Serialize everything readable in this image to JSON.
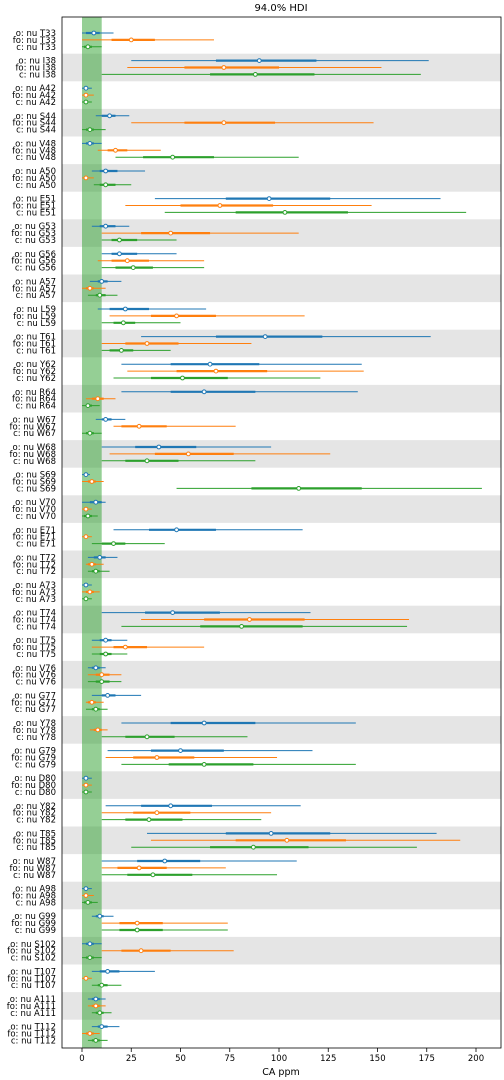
{
  "chart_data": {
    "type": "forest",
    "title": "94.0% HDI",
    "xlabel": "CA ppm",
    "xlim": [
      -10,
      212
    ],
    "xticks": [
      0,
      25,
      50,
      75,
      100,
      125,
      150,
      175,
      200
    ],
    "reference_band": [
      0,
      10
    ],
    "colors": {
      "o": "#1f77b4",
      "fo": "#ff7f0e",
      "c": "#2ca02c",
      "band": "#2ca02c",
      "stripe": "#e5e5e5"
    },
    "row_labels": [
      "o: nu",
      "fo: nu",
      "c: nu"
    ],
    "groups": [
      {
        "name": "T33",
        "o": [
          0,
          2,
          6,
          9,
          16
        ],
        "fo": [
          0,
          15,
          25,
          37,
          67
        ],
        "c": [
          0,
          1,
          3,
          5,
          10
        ]
      },
      {
        "name": "I38",
        "o": [
          25,
          68,
          90,
          119,
          176
        ],
        "fo": [
          23,
          52,
          72,
          100,
          152
        ],
        "c": [
          10,
          65,
          88,
          118,
          172
        ]
      },
      {
        "name": "A42",
        "o": [
          0,
          1,
          2,
          3,
          5
        ],
        "fo": [
          0,
          1,
          2,
          3,
          6
        ],
        "c": [
          0,
          1,
          2,
          3,
          5
        ]
      },
      {
        "name": "S44",
        "o": [
          7,
          10,
          14,
          17,
          24
        ],
        "fo": [
          25,
          52,
          72,
          98,
          148
        ],
        "c": [
          0,
          2,
          4,
          6,
          12
        ]
      },
      {
        "name": "V48",
        "o": [
          0,
          2,
          4,
          6,
          10
        ],
        "fo": [
          8,
          13,
          17,
          23,
          40
        ],
        "c": [
          17,
          31,
          46,
          67,
          110
        ]
      },
      {
        "name": "A50",
        "o": [
          5,
          9,
          12,
          18,
          32
        ],
        "fo": [
          0,
          1,
          2,
          3,
          6
        ],
        "c": [
          6,
          9,
          12,
          17,
          25
        ]
      },
      {
        "name": "E51",
        "o": [
          37,
          73,
          95,
          126,
          182
        ],
        "fo": [
          22,
          50,
          70,
          97,
          147
        ],
        "c": [
          42,
          78,
          103,
          135,
          195
        ]
      },
      {
        "name": "G53",
        "o": [
          5,
          9,
          12,
          17,
          24
        ],
        "fo": [
          10,
          30,
          45,
          65,
          110
        ],
        "c": [
          10,
          15,
          19,
          28,
          48
        ]
      },
      {
        "name": "G56",
        "o": [
          10,
          15,
          19,
          28,
          48
        ],
        "fo": [
          8,
          15,
          23,
          34,
          62
        ],
        "c": [
          10,
          17,
          26,
          36,
          62
        ]
      },
      {
        "name": "A57",
        "o": [
          4,
          8,
          10,
          13,
          20
        ],
        "fo": [
          0,
          2,
          4,
          6,
          12
        ],
        "c": [
          3,
          7,
          9,
          12,
          18
        ]
      },
      {
        "name": "L59",
        "o": [
          8,
          14,
          22,
          34,
          63
        ],
        "fo": [
          14,
          35,
          48,
          68,
          113
        ],
        "c": [
          10,
          16,
          21,
          27,
          50
        ]
      },
      {
        "name": "T61",
        "o": [
          30,
          68,
          93,
          122,
          177
        ],
        "fo": [
          10,
          22,
          33,
          49,
          86
        ],
        "c": [
          10,
          14,
          20,
          26,
          45
        ]
      },
      {
        "name": "Y62",
        "o": [
          20,
          45,
          65,
          90,
          142
        ],
        "fo": [
          23,
          48,
          68,
          94,
          143
        ],
        "c": [
          16,
          35,
          51,
          74,
          121
        ]
      },
      {
        "name": "R64",
        "o": [
          20,
          45,
          62,
          88,
          140
        ],
        "fo": [
          2,
          5,
          8,
          11,
          17
        ],
        "c": [
          0,
          2,
          3,
          5,
          9
        ]
      },
      {
        "name": "W67",
        "o": [
          7,
          10,
          12,
          15,
          22
        ],
        "fo": [
          16,
          20,
          29,
          43,
          78
        ],
        "c": [
          0,
          2,
          4,
          6,
          10
        ]
      },
      {
        "name": "W68",
        "o": [
          10,
          27,
          39,
          58,
          96
        ],
        "fo": [
          14,
          37,
          54,
          77,
          126
        ],
        "c": [
          10,
          22,
          33,
          49,
          88
        ]
      },
      {
        "name": "S69",
        "o": [
          0,
          1,
          2,
          3,
          4
        ],
        "fo": [
          0,
          3,
          5,
          7,
          11
        ],
        "c": [
          48,
          86,
          110,
          142,
          203
        ]
      },
      {
        "name": "V70",
        "o": [
          0,
          4,
          7,
          10,
          12
        ],
        "fo": [
          0,
          1,
          2,
          3,
          5
        ],
        "c": [
          0,
          1,
          3,
          5,
          8
        ]
      },
      {
        "name": "E71",
        "o": [
          16,
          34,
          48,
          68,
          112
        ],
        "fo": [
          0,
          1,
          2,
          3,
          5
        ],
        "c": [
          5,
          10,
          16,
          22,
          42
        ]
      },
      {
        "name": "T72",
        "o": [
          3,
          6,
          9,
          12,
          18
        ],
        "fo": [
          2,
          3,
          5,
          7,
          11
        ],
        "c": [
          3,
          5,
          7,
          9,
          14
        ]
      },
      {
        "name": "A73",
        "o": [
          0,
          1,
          2,
          3,
          5
        ],
        "fo": [
          0,
          2,
          4,
          6,
          9
        ],
        "c": [
          0,
          1,
          2,
          3,
          5
        ]
      },
      {
        "name": "T74",
        "o": [
          10,
          32,
          46,
          70,
          116
        ],
        "fo": [
          30,
          62,
          85,
          113,
          166
        ],
        "c": [
          20,
          60,
          81,
          112,
          165
        ]
      },
      {
        "name": "T75",
        "o": [
          5,
          9,
          12,
          15,
          23
        ],
        "fo": [
          5,
          16,
          22,
          33,
          62
        ],
        "c": [
          5,
          9,
          12,
          15,
          23
        ]
      },
      {
        "name": "V76",
        "o": [
          3,
          5,
          7,
          9,
          12
        ],
        "fo": [
          3,
          7,
          10,
          14,
          20
        ],
        "c": [
          3,
          7,
          10,
          14,
          20
        ]
      },
      {
        "name": "G77",
        "o": [
          5,
          10,
          13,
          17,
          30
        ],
        "fo": [
          2,
          3,
          5,
          7,
          11
        ],
        "c": [
          2,
          5,
          7,
          9,
          13
        ]
      },
      {
        "name": "Y78",
        "o": [
          20,
          45,
          62,
          88,
          139
        ],
        "fo": [
          4,
          6,
          8,
          10,
          13
        ],
        "c": [
          10,
          22,
          33,
          47,
          84
        ]
      },
      {
        "name": "G79",
        "o": [
          13,
          35,
          50,
          72,
          117
        ],
        "fo": [
          12,
          26,
          38,
          57,
          99
        ],
        "c": [
          20,
          44,
          62,
          87,
          139
        ]
      },
      {
        "name": "D80",
        "o": [
          0,
          1,
          2,
          3,
          5
        ],
        "fo": [
          0,
          1,
          2,
          3,
          5
        ],
        "c": [
          0,
          1,
          2,
          3,
          5
        ]
      },
      {
        "name": "Y82",
        "o": [
          12,
          30,
          45,
          66,
          111
        ],
        "fo": [
          10,
          26,
          38,
          55,
          96
        ],
        "c": [
          10,
          22,
          34,
          51,
          91
        ]
      },
      {
        "name": "T85",
        "o": [
          33,
          73,
          96,
          126,
          180
        ],
        "fo": [
          35,
          78,
          104,
          134,
          192
        ],
        "c": [
          25,
          65,
          87,
          115,
          170
        ]
      },
      {
        "name": "W87",
        "o": [
          10,
          28,
          42,
          60,
          109
        ],
        "fo": [
          10,
          18,
          29,
          43,
          73
        ],
        "c": [
          10,
          23,
          36,
          56,
          99
        ]
      },
      {
        "name": "A98",
        "o": [
          0,
          1,
          2,
          3,
          5
        ],
        "fo": [
          0,
          1,
          2,
          3,
          6
        ],
        "c": [
          0,
          1,
          3,
          5,
          8
        ]
      },
      {
        "name": "G99",
        "o": [
          5,
          7,
          9,
          11,
          16
        ],
        "fo": [
          10,
          19,
          28,
          41,
          74
        ],
        "c": [
          10,
          19,
          28,
          41,
          74
        ]
      },
      {
        "name": "S102",
        "o": [
          0,
          2,
          4,
          6,
          10
        ],
        "fo": [
          10,
          20,
          30,
          45,
          77
        ],
        "c": [
          0,
          2,
          4,
          6,
          10
        ]
      },
      {
        "name": "T107",
        "o": [
          5,
          9,
          13,
          19,
          37
        ],
        "fo": [
          0,
          1,
          2,
          3,
          5
        ],
        "c": [
          5,
          8,
          10,
          13,
          20
        ]
      },
      {
        "name": "A111",
        "o": [
          3,
          5,
          7,
          9,
          12
        ],
        "fo": [
          3,
          5,
          7,
          9,
          12
        ],
        "c": [
          5,
          7,
          9,
          11,
          15
        ]
      },
      {
        "name": "T112",
        "o": [
          5,
          8,
          10,
          13,
          19
        ],
        "fo": [
          0,
          2,
          4,
          6,
          9
        ],
        "c": [
          3,
          5,
          7,
          9,
          13
        ]
      }
    ]
  }
}
